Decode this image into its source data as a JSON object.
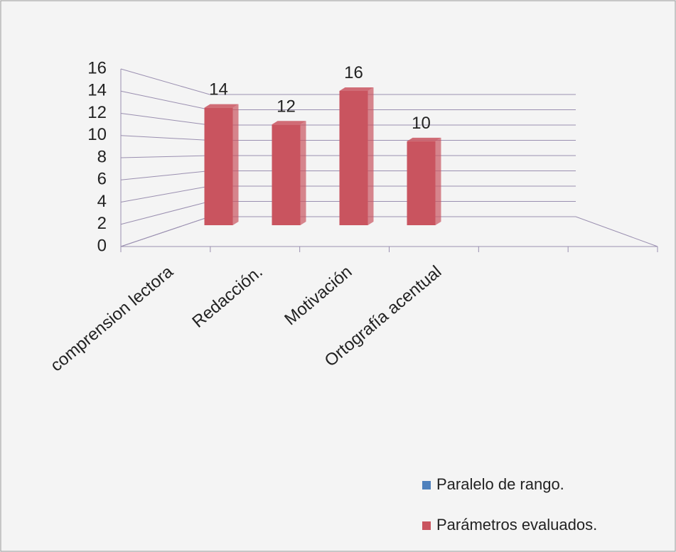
{
  "chart_data": {
    "type": "bar3d",
    "categories": [
      "comprension lectora",
      "Redacción.",
      "Motivación",
      "Ortografía acentual",
      null,
      null
    ],
    "series": [
      {
        "name": "Paralelo de rango.",
        "color": "#4f81bd",
        "values": [
          null,
          null,
          null,
          null,
          null,
          null
        ]
      },
      {
        "name": "Parámetros evaluados.",
        "color": "#c9545f",
        "values": [
          14,
          12,
          16,
          10,
          null,
          null
        ]
      }
    ],
    "ylim": [
      0,
      16
    ],
    "yticks": [
      0,
      2,
      4,
      6,
      8,
      10,
      12,
      14,
      16
    ],
    "grid": true,
    "legend": "bottom-right"
  }
}
